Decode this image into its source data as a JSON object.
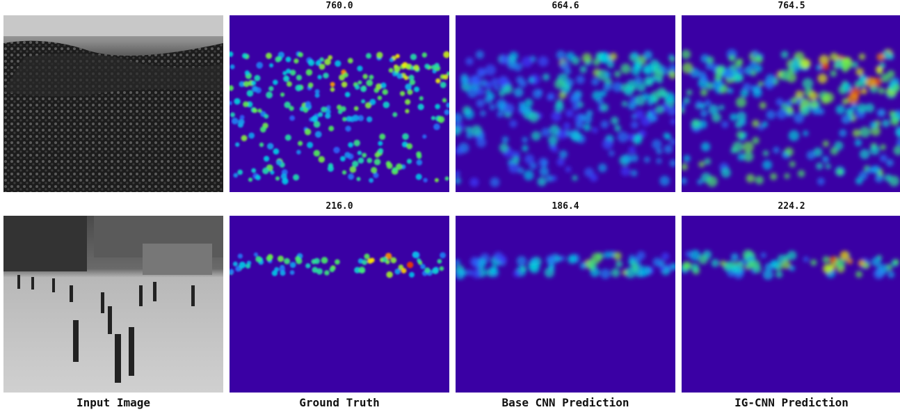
{
  "figure": {
    "columns": [
      "Input Image",
      "Ground Truth",
      "Base CNN Prediction",
      "IG-CNN Prediction"
    ],
    "rows": [
      {
        "counts": {
          "ground_truth": "760.0",
          "base_cnn": "664.6",
          "ig_cnn": "764.5"
        }
      },
      {
        "counts": {
          "ground_truth": "216.0",
          "base_cnn": "186.4",
          "ig_cnn": "224.2"
        }
      }
    ]
  },
  "colors": {
    "background": "#ffffff",
    "density_low": "#3a00a4",
    "density_high": "#c00000"
  }
}
